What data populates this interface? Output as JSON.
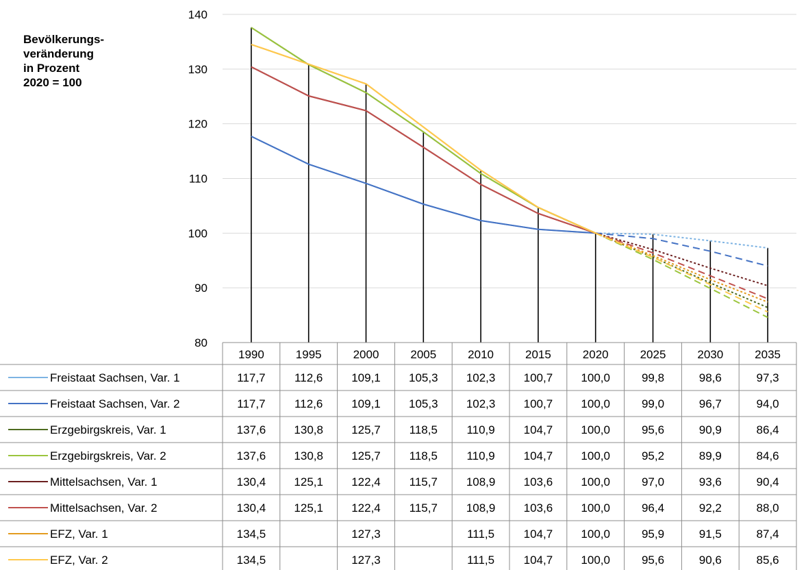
{
  "chart_data": {
    "type": "line",
    "ylabel_lines": [
      "Bevölkerungs-",
      "veränderung",
      "in Prozent",
      "2020 = 100"
    ],
    "ylim": [
      80,
      140
    ],
    "yticks": [
      "80",
      "90",
      "100",
      "110",
      "120",
      "130",
      "140"
    ],
    "grid": true,
    "categories": [
      "1990",
      "1995",
      "2000",
      "2005",
      "2010",
      "2015",
      "2020",
      "2025",
      "2030",
      "2035"
    ],
    "series": [
      {
        "name": "Freistaat Sachsen, Var. 1",
        "color": "#7DB3E3",
        "dash": "dotted",
        "values": [
          117.7,
          112.6,
          109.1,
          105.3,
          102.3,
          100.7,
          100.0,
          99.8,
          98.6,
          97.3
        ],
        "labels": [
          "117,7",
          "112,6",
          "109,1",
          "105,3",
          "102,3",
          "100,7",
          "100,0",
          "99,8",
          "98,6",
          "97,3"
        ]
      },
      {
        "name": "Freistaat Sachsen, Var. 2",
        "color": "#4472C4",
        "dash": "dashed",
        "values": [
          117.7,
          112.6,
          109.1,
          105.3,
          102.3,
          100.7,
          100.0,
          99.0,
          96.7,
          94.0
        ],
        "labels": [
          "117,7",
          "112,6",
          "109,1",
          "105,3",
          "102,3",
          "100,7",
          "100,0",
          "99,0",
          "96,7",
          "94,0"
        ]
      },
      {
        "name": "Erzgebirgskreis, Var. 1",
        "color": "#4E6B1F",
        "dash": "dotted",
        "values": [
          137.6,
          130.8,
          125.7,
          118.5,
          110.9,
          104.7,
          100.0,
          95.6,
          90.9,
          86.4
        ],
        "labels": [
          "137,6",
          "130,8",
          "125,7",
          "118,5",
          "110,9",
          "104,7",
          "100,0",
          "95,6",
          "90,9",
          "86,4"
        ]
      },
      {
        "name": "Erzgebirgskreis, Var. 2",
        "color": "#9BC53D",
        "dash": "dashed",
        "values": [
          137.6,
          130.8,
          125.7,
          118.5,
          110.9,
          104.7,
          100.0,
          95.2,
          89.9,
          84.6
        ],
        "labels": [
          "137,6",
          "130,8",
          "125,7",
          "118,5",
          "110,9",
          "104,7",
          "100,0",
          "95,2",
          "89,9",
          "84,6"
        ]
      },
      {
        "name": "Mittelsachsen, Var. 1",
        "color": "#6B1F1F",
        "dash": "dotted",
        "values": [
          130.4,
          125.1,
          122.4,
          115.7,
          108.9,
          103.6,
          100.0,
          97.0,
          93.6,
          90.4
        ],
        "labels": [
          "130,4",
          "125,1",
          "122,4",
          "115,7",
          "108,9",
          "103,6",
          "100,0",
          "97,0",
          "93,6",
          "90,4"
        ]
      },
      {
        "name": "Mittelsachsen, Var. 2",
        "color": "#C0504D",
        "dash": "dashed",
        "values": [
          130.4,
          125.1,
          122.4,
          115.7,
          108.9,
          103.6,
          100.0,
          96.4,
          92.2,
          88.0
        ],
        "labels": [
          "130,4",
          "125,1",
          "122,4",
          "115,7",
          "108,9",
          "103,6",
          "100,0",
          "96,4",
          "92,2",
          "88,0"
        ]
      },
      {
        "name": "EFZ, Var. 1",
        "color": "#E39B1E",
        "dash": "dotted",
        "values": [
          134.5,
          null,
          127.3,
          null,
          111.5,
          104.7,
          100.0,
          95.9,
          91.5,
          87.4
        ],
        "labels": [
          "134,5",
          "",
          "127,3",
          "",
          "111,5",
          "104,7",
          "100,0",
          "95,9",
          "91,5",
          "87,4"
        ]
      },
      {
        "name": "EFZ, Var. 2",
        "color": "#FFC94D",
        "dash": "dashed",
        "values": [
          134.5,
          null,
          127.3,
          null,
          111.5,
          104.7,
          100.0,
          95.6,
          90.6,
          85.6
        ],
        "labels": [
          "134,5",
          "",
          "127,3",
          "",
          "111,5",
          "104,7",
          "100,0",
          "95,6",
          "90,6",
          "85,6"
        ]
      }
    ]
  }
}
